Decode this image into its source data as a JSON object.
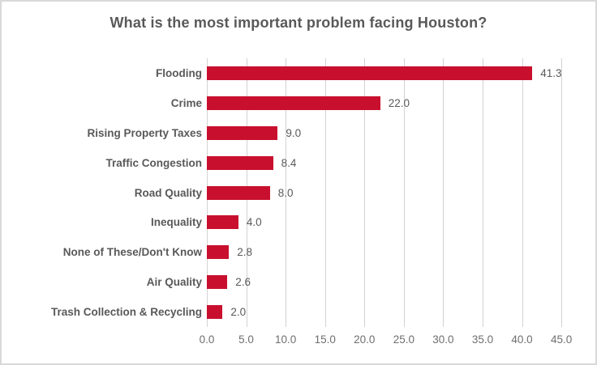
{
  "chart_data": {
    "type": "bar",
    "orientation": "horizontal",
    "title": "What is the most important problem facing Houston?",
    "categories": [
      "Flooding",
      "Crime",
      "Rising Property Taxes",
      "Traffic Congestion",
      "Road Quality",
      "Inequality",
      "None of These/Don't Know",
      "Air Quality",
      "Trash Collection & Recycling"
    ],
    "values": [
      41.3,
      22.0,
      9.0,
      8.4,
      8.0,
      4.0,
      2.8,
      2.6,
      2.0
    ],
    "value_labels": [
      "41.3",
      "22.0",
      "9.0",
      "8.4",
      "8.0",
      "4.0",
      "2.8",
      "2.6",
      "2.0"
    ],
    "x_ticks": [
      0.0,
      5.0,
      10.0,
      15.0,
      20.0,
      25.0,
      30.0,
      35.0,
      40.0,
      45.0
    ],
    "x_tick_labels": [
      "0.0",
      "5.0",
      "10.0",
      "15.0",
      "20.0",
      "25.0",
      "30.0",
      "35.0",
      "40.0",
      "45.0"
    ],
    "xlim": [
      0,
      45
    ],
    "grid": "vertical",
    "legend": "none",
    "colors": {
      "bar": "#c8102e",
      "gridline": "#d2d2d2",
      "title_text": "#595959",
      "category_text": "#595959",
      "value_text": "#595959",
      "tick_text": "#6e6e6e",
      "border": "#d9d9d9",
      "background": "#ffffff"
    }
  }
}
